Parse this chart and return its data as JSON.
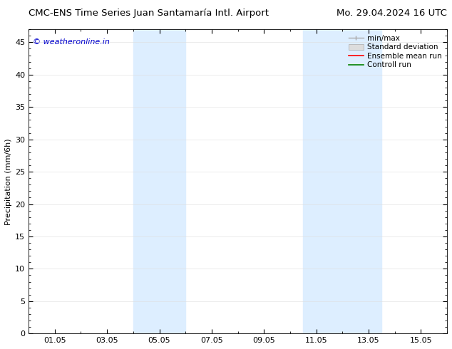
{
  "title_left": "CMC-ENS Time Series Juan Santamaría Intl. Airport",
  "title_right": "Mo. 29.04.2024 16 UTC",
  "ylabel": "Precipitation (mm/6h)",
  "watermark": "© weatheronline.in",
  "watermark_color": "#0000cc",
  "xlim_start": 0.0,
  "xlim_end": 16.0,
  "ylim_min": 0,
  "ylim_max": 47,
  "yticks": [
    0,
    5,
    10,
    15,
    20,
    25,
    30,
    35,
    40,
    45
  ],
  "xtick_labels": [
    "01.05",
    "03.05",
    "05.05",
    "07.05",
    "09.05",
    "11.05",
    "13.05",
    "15.05"
  ],
  "xtick_positions": [
    1,
    3,
    5,
    7,
    9,
    11,
    13,
    15
  ],
  "shaded_bands": [
    {
      "x_start": 4.0,
      "x_end": 6.0
    },
    {
      "x_start": 10.5,
      "x_end": 13.5
    }
  ],
  "shade_color": "#ddeeff",
  "background_color": "#ffffff",
  "legend_labels": [
    "min/max",
    "Standard deviation",
    "Ensemble mean run",
    "Controll run"
  ],
  "legend_line_colors": [
    "#aaaaaa",
    "#cccccc",
    "#ff0000",
    "#008000"
  ],
  "title_fontsize": 9.5,
  "tick_fontsize": 8,
  "ylabel_fontsize": 8,
  "watermark_fontsize": 8,
  "legend_fontsize": 7.5
}
